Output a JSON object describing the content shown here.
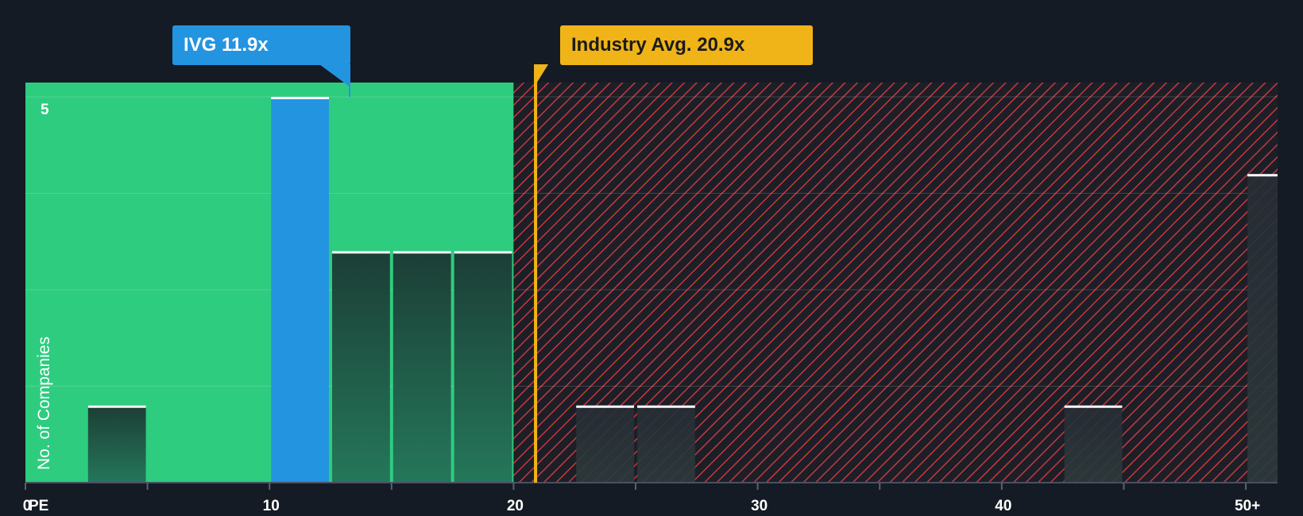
{
  "chart_data": {
    "type": "bar",
    "bins": [
      {
        "x0": 0,
        "x1": 2.5,
        "value": 0
      },
      {
        "x0": 2.5,
        "x1": 5,
        "value": 0.8
      },
      {
        "x0": 5,
        "x1": 7.5,
        "value": 0
      },
      {
        "x0": 7.5,
        "x1": 10,
        "value": 0
      },
      {
        "x0": 10,
        "x1": 12.5,
        "value": 4
      },
      {
        "x0": 12.5,
        "x1": 15,
        "value": 2.4
      },
      {
        "x0": 15,
        "x1": 17.5,
        "value": 2.4
      },
      {
        "x0": 17.5,
        "x1": 20,
        "value": 2.4
      },
      {
        "x0": 20,
        "x1": 22.5,
        "value": 0
      },
      {
        "x0": 22.5,
        "x1": 25,
        "value": 0.8
      },
      {
        "x0": 25,
        "x1": 27.5,
        "value": 0.8
      },
      {
        "x0": 42.5,
        "x1": 45,
        "value": 0.8
      },
      {
        "x0": 50,
        "x1": 52.5,
        "value": 3.2
      }
    ],
    "highlight_bin_index": 4,
    "xlim": [
      0,
      51.3
    ],
    "ylim": [
      0,
      4
    ],
    "x_ticks": [
      {
        "value": 0,
        "label": "0"
      },
      {
        "value": 10,
        "label": "10"
      },
      {
        "value": 20,
        "label": "20"
      },
      {
        "value": 30,
        "label": "30"
      },
      {
        "value": 40,
        "label": "40"
      },
      {
        "value": 50,
        "label": "50+"
      }
    ],
    "y_tick_label": "5",
    "xlabel": "PE",
    "ylabel": "No. of Companies",
    "fair_region_end": 20,
    "company": {
      "label": "IVG 11.9x",
      "value": 11.9
    },
    "industry_avg": {
      "label": "Industry Avg. 20.9x",
      "value": 20.9
    },
    "grid": true,
    "colors": {
      "background": "#151b24",
      "fair_region": "#2ecc7f",
      "overvalued_hatch": "#c8373b",
      "highlight_bar": "#2394e0",
      "industry_line": "#f0b418",
      "bar_cap": "#ffffff"
    }
  }
}
